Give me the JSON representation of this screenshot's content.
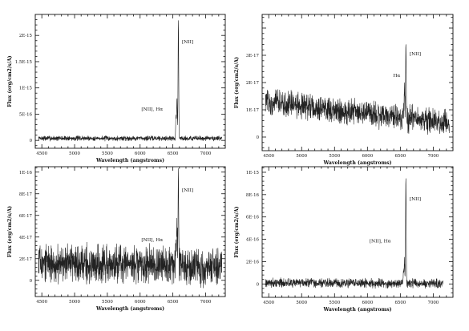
{
  "chart_data": [
    {
      "type": "line",
      "panel": "top-left",
      "xlabel": "Wavelength (angstroms)",
      "ylabel": "Flux (erg/cm2/s/A)",
      "xlim": [
        4400,
        7300
      ],
      "ylim": [
        -1.5e-16,
        2.4e-15
      ],
      "xticks": [
        4500,
        5000,
        5500,
        6000,
        6500,
        7000
      ],
      "xtick_labels": [
        "4500",
        "5000",
        "5500",
        "6000",
        "6500",
        "7000"
      ],
      "yticks": [
        0,
        5e-16,
        1e-15,
        1.5e-15,
        2e-15
      ],
      "ytick_labels": [
        "0",
        "5E-16",
        "1E-15",
        "1.5E-15",
        "2E-15"
      ],
      "spectrum": {
        "start": 4450,
        "end": 7250,
        "baseline": 4e-17,
        "noise": 3.5e-17,
        "slope": 0
      },
      "lines": [
        {
          "wavelength": 6548,
          "peak": 4.5e-16,
          "sigma": 5
        },
        {
          "wavelength": 6563,
          "peak": 7.5e-16,
          "sigma": 5
        },
        {
          "wavelength": 6584,
          "peak": 2.25e-15,
          "sigma": 5
        }
      ],
      "annotations": [
        {
          "text": "[NII]",
          "x": 6640,
          "y": 1.85e-15
        },
        {
          "text": "[NII], Hα",
          "x": 6020,
          "y": 5.7e-16
        }
      ]
    },
    {
      "type": "line",
      "panel": "top-right",
      "xlabel": "Wavelength (angstroms)",
      "ylabel": "Flux (erg/cm2/s/A)",
      "xlim": [
        4400,
        7300
      ],
      "ylim": [
        -5e-18,
        4.5e-17
      ],
      "xticks": [
        4500,
        5000,
        5500,
        6000,
        6500,
        7000
      ],
      "xtick_labels": [
        "4500",
        "5000",
        "5500",
        "6000",
        "6500",
        "7000"
      ],
      "yticks": [
        0,
        1e-17,
        2e-17,
        3e-17
      ],
      "ytick_labels": [
        "0",
        "1E-17",
        "2E-17",
        "3E-17"
      ],
      "spectrum": {
        "start": 4450,
        "end": 7250,
        "baseline": 1.3e-17,
        "noise": 3.5e-18,
        "slope": -8e-18
      },
      "lines": [
        {
          "wavelength": 6563,
          "peak": 1.3e-17,
          "sigma": 5
        },
        {
          "wavelength": 6584,
          "peak": 2.9e-17,
          "sigma": 5
        }
      ],
      "annotations": [
        {
          "text": "[NII]",
          "x": 6640,
          "y": 3e-17
        },
        {
          "text": "Hα",
          "x": 6390,
          "y": 2.2e-17
        }
      ]
    },
    {
      "type": "line",
      "panel": "bottom-left",
      "xlabel": "Wavelength (angstroms)",
      "ylabel": "Flux (erg/cm2/s/A)",
      "xlim": [
        4400,
        7300
      ],
      "ylim": [
        -1.5e-17,
        1.05e-16
      ],
      "xticks": [
        4500,
        5000,
        5500,
        6000,
        6500,
        7000
      ],
      "xtick_labels": [
        "4500",
        "5000",
        "5500",
        "6000",
        "6500",
        "7000"
      ],
      "yticks": [
        0,
        2e-17,
        4e-17,
        6e-17,
        8e-17,
        1e-16
      ],
      "ytick_labels": [
        "0",
        "2E-17",
        "4E-17",
        "6E-17",
        "8E-17",
        "1E-16"
      ],
      "spectrum": {
        "start": 4450,
        "end": 7250,
        "baseline": 1.6e-17,
        "noise": 1.3e-17,
        "slope": -3e-18
      },
      "lines": [
        {
          "wavelength": 6548,
          "peak": 1.5e-17,
          "sigma": 5
        },
        {
          "wavelength": 6563,
          "peak": 3.5e-17,
          "sigma": 5
        },
        {
          "wavelength": 6584,
          "peak": 8.6e-17,
          "sigma": 5
        }
      ],
      "annotations": [
        {
          "text": "[NII]",
          "x": 6640,
          "y": 8.2e-17
        },
        {
          "text": "[NII], Hα",
          "x": 6020,
          "y": 3.6e-17
        }
      ]
    },
    {
      "type": "line",
      "panel": "bottom-right",
      "xlabel": "Wavelength (angstroms)",
      "ylabel": "Flux (erg/cm2/s/A)",
      "xlim": [
        4400,
        7300
      ],
      "ylim": [
        -1.2e-16,
        1.05e-15
      ],
      "xticks": [
        4500,
        5000,
        5500,
        6000,
        6500,
        7000
      ],
      "xtick_labels": [
        "4500",
        "5000",
        "5500",
        "6000",
        "6500",
        "7000"
      ],
      "yticks": [
        0,
        2e-16,
        4e-16,
        6e-16,
        8e-16,
        1e-15
      ],
      "ytick_labels": [
        "0",
        "2E-16",
        "4E-16",
        "6E-16",
        "8E-16",
        "1E-15"
      ],
      "spectrum": {
        "start": 4450,
        "end": 7150,
        "baseline": 1.2e-17,
        "noise": 3e-17,
        "slope": -1e-17
      },
      "lines": [
        {
          "wavelength": 6548,
          "peak": 1.2e-16,
          "sigma": 5
        },
        {
          "wavelength": 6563,
          "peak": 2e-16,
          "sigma": 5
        },
        {
          "wavelength": 6584,
          "peak": 9.6e-16,
          "sigma": 5
        }
      ],
      "annotations": [
        {
          "text": "[NII]",
          "x": 6640,
          "y": 7.5e-16
        },
        {
          "text": "[NII], Hα",
          "x": 6030,
          "y": 3.7e-16
        }
      ]
    }
  ]
}
